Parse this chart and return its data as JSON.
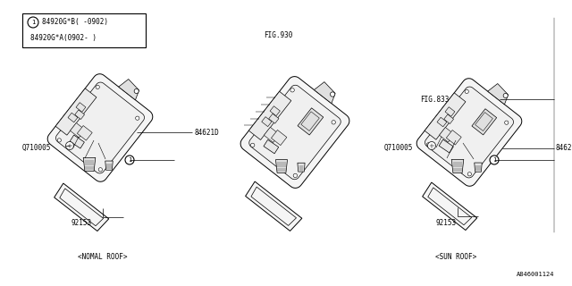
{
  "background_color": "#ffffff",
  "line_color": "#000000",
  "legend_lines": [
    "84920G*B( -0902)",
    "84920G*A(0902- )"
  ],
  "footer_label": "A846001124",
  "normal_roof_label": "<NOMAL ROOF>",
  "sun_roof_label": "<SUN ROOF>",
  "fig930_label": "FIG.930",
  "fig833_label": "FIG.833",
  "label_84621D": "84621D",
  "label_Q710005": "Q710005",
  "label_92153": "92153"
}
